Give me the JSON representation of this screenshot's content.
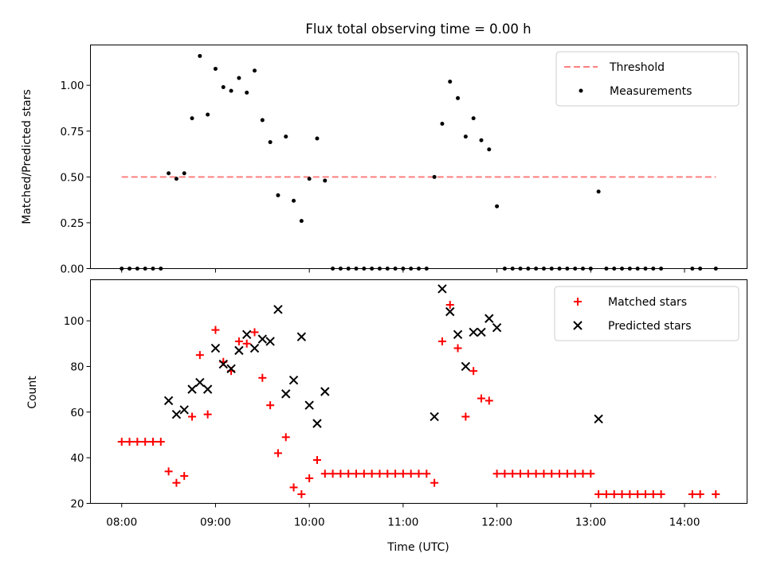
{
  "chart_data": [
    {
      "type": "scatter",
      "title": "Flux total observing time = 0.00 h",
      "xlabel": "",
      "ylabel": "Matched/Predicted stars",
      "xlim": [
        "07:40",
        "14:40"
      ],
      "ylim": [
        0,
        1.22
      ],
      "yticks": [
        0.0,
        0.25,
        0.5,
        0.75,
        1.0,
        1.25
      ],
      "ytick_labels": [
        "0.00",
        "0.25",
        "0.50",
        "0.75",
        "1.00",
        ""
      ],
      "legend_position": "upper right",
      "series": [
        {
          "name": "Threshold",
          "kind": "dashed-line",
          "color": "#ff8080",
          "x": [
            "08:00",
            "14:20"
          ],
          "y": [
            0.5,
            0.5
          ]
        },
        {
          "name": "Measurements",
          "kind": "dot",
          "color": "#000000",
          "x": [
            "08:00",
            "08:05",
            "08:10",
            "08:15",
            "08:20",
            "08:25",
            "08:30",
            "08:35",
            "08:40",
            "08:45",
            "08:50",
            "08:55",
            "09:00",
            "09:05",
            "09:10",
            "09:15",
            "09:20",
            "09:25",
            "09:30",
            "09:35",
            "09:40",
            "09:45",
            "09:50",
            "09:55",
            "10:00",
            "10:05",
            "10:10",
            "10:15",
            "10:20",
            "10:25",
            "10:30",
            "10:35",
            "10:40",
            "10:45",
            "10:50",
            "10:55",
            "11:00",
            "11:05",
            "11:10",
            "11:15",
            "11:20",
            "11:25",
            "11:30",
            "11:35",
            "11:40",
            "11:45",
            "11:50",
            "11:55",
            "12:00",
            "12:05",
            "12:10",
            "12:15",
            "12:20",
            "12:25",
            "12:30",
            "12:35",
            "12:40",
            "12:45",
            "12:50",
            "12:55",
            "13:00",
            "13:05",
            "13:10",
            "13:15",
            "13:20",
            "13:25",
            "13:30",
            "13:35",
            "13:40",
            "13:45",
            "14:05",
            "14:10",
            "14:20"
          ],
          "y": [
            0.0,
            0.0,
            0.0,
            0.0,
            0.0,
            0.0,
            0.52,
            0.49,
            0.52,
            0.82,
            1.16,
            0.84,
            1.09,
            0.99,
            0.97,
            1.04,
            0.96,
            1.08,
            0.81,
            0.69,
            0.4,
            0.72,
            0.37,
            0.26,
            0.49,
            0.71,
            0.48,
            0.0,
            0.0,
            0.0,
            0.0,
            0.0,
            0.0,
            0.0,
            0.0,
            0.0,
            0.0,
            0.0,
            0.0,
            0.0,
            0.5,
            0.79,
            1.02,
            0.93,
            0.72,
            0.82,
            0.7,
            0.65,
            0.34,
            0.0,
            0.0,
            0.0,
            0.0,
            0.0,
            0.0,
            0.0,
            0.0,
            0.0,
            0.0,
            0.0,
            0.0,
            0.42,
            0.0,
            0.0,
            0.0,
            0.0,
            0.0,
            0.0,
            0.0,
            0.0,
            0.0,
            0.0,
            0.0
          ]
        }
      ]
    },
    {
      "type": "scatter",
      "title": "",
      "xlabel": "Time (UTC)",
      "ylabel": "Count",
      "xlim": [
        "07:40",
        "14:40"
      ],
      "ylim": [
        20,
        118
      ],
      "yticks": [
        20,
        40,
        60,
        80,
        100
      ],
      "ytick_labels": [
        "20",
        "40",
        "60",
        "80",
        "100"
      ],
      "xticks": [
        "08:00",
        "09:00",
        "10:00",
        "11:00",
        "12:00",
        "13:00",
        "14:00"
      ],
      "legend_position": "upper right",
      "series": [
        {
          "name": "Matched stars",
          "kind": "plus",
          "color": "#ff0000",
          "x": [
            "08:00",
            "08:05",
            "08:10",
            "08:15",
            "08:20",
            "08:25",
            "08:30",
            "08:35",
            "08:40",
            "08:45",
            "08:50",
            "08:55",
            "09:00",
            "09:05",
            "09:10",
            "09:15",
            "09:20",
            "09:25",
            "09:30",
            "09:35",
            "09:40",
            "09:45",
            "09:50",
            "09:55",
            "10:00",
            "10:05",
            "10:10",
            "10:15",
            "10:20",
            "10:25",
            "10:30",
            "10:35",
            "10:40",
            "10:45",
            "10:50",
            "10:55",
            "11:00",
            "11:05",
            "11:10",
            "11:15",
            "11:20",
            "11:25",
            "11:30",
            "11:35",
            "11:40",
            "11:45",
            "11:50",
            "11:55",
            "12:00",
            "12:05",
            "12:10",
            "12:15",
            "12:20",
            "12:25",
            "12:30",
            "12:35",
            "12:40",
            "12:45",
            "12:50",
            "12:55",
            "13:00",
            "13:05",
            "13:10",
            "13:15",
            "13:20",
            "13:25",
            "13:30",
            "13:35",
            "13:40",
            "13:45",
            "14:05",
            "14:10",
            "14:20"
          ],
          "y": [
            47,
            47,
            47,
            47,
            47,
            47,
            34,
            29,
            32,
            58,
            85,
            59,
            96,
            82,
            78,
            91,
            90,
            95,
            75,
            63,
            42,
            49,
            27,
            24,
            31,
            39,
            33,
            33,
            33,
            33,
            33,
            33,
            33,
            33,
            33,
            33,
            33,
            33,
            33,
            33,
            29,
            91,
            107,
            88,
            58,
            78,
            66,
            65,
            33,
            33,
            33,
            33,
            33,
            33,
            33,
            33,
            33,
            33,
            33,
            33,
            33,
            24,
            24,
            24,
            24,
            24,
            24,
            24,
            24,
            24,
            24,
            24,
            24
          ]
        },
        {
          "name": "Predicted stars",
          "kind": "x",
          "color": "#000000",
          "x": [
            "08:30",
            "08:35",
            "08:40",
            "08:45",
            "08:50",
            "08:55",
            "09:00",
            "09:05",
            "09:10",
            "09:15",
            "09:20",
            "09:25",
            "09:30",
            "09:35",
            "09:40",
            "09:45",
            "09:50",
            "09:55",
            "10:00",
            "10:05",
            "10:10",
            "11:20",
            "11:25",
            "11:30",
            "11:35",
            "11:40",
            "11:45",
            "11:50",
            "11:55",
            "12:00",
            "13:05"
          ],
          "y": [
            65,
            59,
            61,
            70,
            73,
            70,
            88,
            81,
            79,
            87,
            94,
            88,
            92,
            91,
            105,
            68,
            74,
            93,
            63,
            55,
            69,
            58,
            114,
            104,
            94,
            80,
            95,
            95,
            101,
            97,
            57
          ]
        }
      ]
    }
  ]
}
